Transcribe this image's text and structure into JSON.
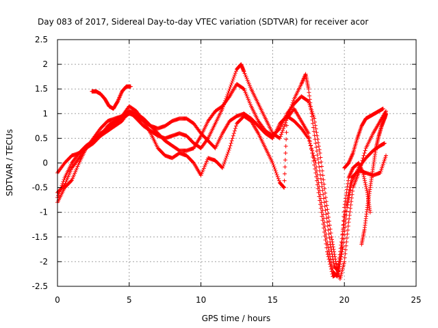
{
  "chart_data": {
    "type": "scatter",
    "title": "Day 083 of 2017, Sidereal Day-to-day VTEC variation (SDTVAR) for receiver acor",
    "xlabel": "GPS time / hours",
    "ylabel": "SDTVAR / TECUs",
    "xlim": [
      0,
      25
    ],
    "ylim": [
      -2.5,
      2.5
    ],
    "xticks": [
      "0",
      "5",
      "10",
      "15",
      "20",
      "25"
    ],
    "yticks": [
      "-2.5",
      "-2",
      "-1.5",
      "-1",
      "-0.5",
      "0",
      "0.5",
      "1",
      "1.5",
      "2",
      "2.5"
    ],
    "grid": true,
    "marker": "+",
    "color": "#ff0000",
    "series": [
      {
        "values": [
          [
            0,
            -0.6
          ],
          [
            0.5,
            -0.45
          ],
          [
            1,
            -0.1
          ],
          [
            1.5,
            0.1
          ],
          [
            2,
            0.3
          ],
          [
            2.5,
            0.5
          ],
          [
            3,
            0.7
          ],
          [
            3.5,
            0.85
          ],
          [
            4,
            0.9
          ],
          [
            4.5,
            0.95
          ],
          [
            5,
            1.05
          ],
          [
            5.5,
            0.9
          ],
          [
            6,
            0.75
          ],
          [
            6.5,
            0.65
          ],
          [
            7,
            0.55
          ],
          [
            7.5,
            0.5
          ],
          [
            8,
            0.55
          ],
          [
            8.5,
            0.6
          ],
          [
            9,
            0.55
          ],
          [
            9.5,
            0.4
          ],
          [
            10,
            0.3
          ],
          [
            10.5,
            0.5
          ],
          [
            11,
            0.8
          ],
          [
            11.5,
            1.1
          ],
          [
            12,
            1.5
          ],
          [
            12.5,
            1.9
          ],
          [
            12.8,
            2.0
          ],
          [
            13,
            1.85
          ],
          [
            13.5,
            1.5
          ],
          [
            14,
            1.2
          ],
          [
            14.5,
            0.9
          ],
          [
            15,
            0.6
          ],
          [
            15.5,
            0.5
          ],
          [
            16,
            0.9
          ],
          [
            16.5,
            1.3
          ],
          [
            17,
            1.6
          ],
          [
            17.3,
            1.8
          ],
          [
            17.5,
            1.5
          ],
          [
            17.8,
            0.8
          ],
          [
            18.2,
            0.0
          ],
          [
            18.6,
            -0.8
          ],
          [
            19,
            -1.6
          ],
          [
            19.3,
            -2.1
          ],
          [
            19.6,
            -2.2
          ],
          [
            19.9,
            -1.7
          ],
          [
            20.2,
            -0.9
          ],
          [
            20.5,
            -0.4
          ],
          [
            21,
            -0.1
          ],
          [
            21.5,
            0.1
          ],
          [
            22,
            0.25
          ],
          [
            22.5,
            0.35
          ],
          [
            22.8,
            0.4
          ]
        ]
      },
      {
        "values": [
          [
            0,
            -0.7
          ],
          [
            0.5,
            -0.3
          ],
          [
            1,
            0.0
          ],
          [
            1.5,
            0.2
          ],
          [
            2,
            0.35
          ],
          [
            2.5,
            0.45
          ],
          [
            3,
            0.55
          ],
          [
            3.5,
            0.65
          ],
          [
            4,
            0.75
          ],
          [
            4.5,
            0.85
          ],
          [
            5,
            1.05
          ],
          [
            5.5,
            1.0
          ],
          [
            6,
            0.9
          ],
          [
            6.5,
            0.75
          ],
          [
            7,
            0.6
          ],
          [
            7.5,
            0.45
          ],
          [
            8,
            0.35
          ],
          [
            8.5,
            0.25
          ],
          [
            9,
            0.25
          ],
          [
            9.5,
            0.3
          ],
          [
            10,
            0.55
          ],
          [
            10.5,
            0.85
          ],
          [
            11,
            1.05
          ],
          [
            11.5,
            1.15
          ],
          [
            12,
            1.35
          ],
          [
            12.5,
            1.6
          ],
          [
            13,
            1.5
          ],
          [
            13.5,
            1.15
          ],
          [
            14,
            0.85
          ],
          [
            14.5,
            0.65
          ],
          [
            15,
            0.55
          ],
          [
            15.5,
            0.7
          ],
          [
            16,
            1.0
          ],
          [
            16.5,
            1.2
          ],
          [
            17,
            1.35
          ],
          [
            17.5,
            1.25
          ],
          [
            17.9,
            0.9
          ],
          [
            18.3,
            0.2
          ],
          [
            18.7,
            -0.7
          ],
          [
            19.1,
            -1.5
          ],
          [
            19.4,
            -2.0
          ],
          [
            19.7,
            -2.35
          ],
          [
            20,
            -2.0
          ],
          [
            20.3,
            -1.2
          ],
          [
            20.6,
            -0.5
          ],
          [
            21,
            -0.2
          ],
          [
            21.5,
            0.3
          ],
          [
            22,
            0.6
          ],
          [
            22.5,
            0.85
          ],
          [
            22.9,
            1.05
          ]
        ]
      },
      {
        "values": [
          [
            0,
            -0.2
          ],
          [
            0.5,
            0.0
          ],
          [
            1,
            0.15
          ],
          [
            1.5,
            0.2
          ],
          [
            2,
            0.3
          ],
          [
            2.5,
            0.45
          ],
          [
            3,
            0.6
          ],
          [
            3.5,
            0.7
          ],
          [
            4,
            0.8
          ],
          [
            4.5,
            0.95
          ],
          [
            5,
            1.15
          ],
          [
            5.5,
            1.05
          ],
          [
            6,
            0.85
          ],
          [
            6.5,
            0.6
          ],
          [
            7,
            0.3
          ],
          [
            7.5,
            0.15
          ],
          [
            8,
            0.1
          ],
          [
            8.5,
            0.2
          ],
          [
            9,
            0.15
          ],
          [
            9.5,
            0.0
          ],
          [
            10,
            -0.25
          ],
          [
            10.5,
            0.1
          ],
          [
            11,
            0.05
          ],
          [
            11.5,
            -0.1
          ],
          [
            12,
            0.3
          ],
          [
            12.5,
            0.8
          ],
          [
            13,
            0.95
          ],
          [
            13.5,
            0.85
          ],
          [
            14,
            0.6
          ],
          [
            14.5,
            0.3
          ],
          [
            15,
            0.0
          ],
          [
            15.5,
            -0.4
          ],
          [
            15.8,
            -0.5
          ],
          [
            16,
            0.9
          ],
          [
            16.5,
            1.1
          ],
          [
            17,
            0.85
          ],
          [
            17.5,
            0.6
          ],
          [
            18,
            -0.2
          ],
          [
            18.4,
            -1.0
          ],
          [
            18.8,
            -1.8
          ],
          [
            19.2,
            -2.3
          ],
          [
            19.5,
            -2.25
          ],
          [
            19.8,
            -1.6
          ],
          [
            20.1,
            -0.9
          ],
          [
            20.5,
            -0.3
          ],
          [
            21,
            -0.15
          ],
          [
            21.5,
            -0.2
          ],
          [
            22,
            -0.25
          ],
          [
            22.5,
            -0.2
          ],
          [
            22.9,
            0.15
          ]
        ]
      },
      {
        "values": [
          [
            0,
            -0.8
          ],
          [
            0.5,
            -0.5
          ],
          [
            1,
            -0.35
          ],
          [
            1.5,
            0.0
          ],
          [
            2,
            0.3
          ],
          [
            2.5,
            0.4
          ],
          [
            3,
            0.55
          ],
          [
            3.5,
            0.75
          ],
          [
            4,
            0.85
          ],
          [
            4.5,
            0.9
          ],
          [
            5,
            1.0
          ],
          [
            5.5,
            0.95
          ],
          [
            6,
            0.85
          ],
          [
            6.5,
            0.75
          ],
          [
            7,
            0.7
          ],
          [
            7.5,
            0.75
          ],
          [
            8,
            0.85
          ],
          [
            8.5,
            0.9
          ],
          [
            9,
            0.9
          ],
          [
            9.5,
            0.8
          ],
          [
            10,
            0.6
          ],
          [
            10.5,
            0.45
          ],
          [
            11,
            0.3
          ],
          [
            11.5,
            0.6
          ],
          [
            12,
            0.85
          ],
          [
            12.5,
            0.95
          ],
          [
            13,
            1.0
          ],
          [
            13.5,
            0.9
          ],
          [
            14,
            0.75
          ],
          [
            14.5,
            0.6
          ],
          [
            15,
            0.5
          ],
          [
            15.5,
            0.8
          ],
          [
            16,
            0.95
          ],
          [
            16.5,
            0.85
          ],
          [
            17,
            0.7
          ],
          [
            17.5,
            0.5
          ],
          [
            18,
            0.0
          ],
          [
            18.4,
            -0.8
          ],
          [
            18.8,
            -1.6
          ],
          [
            19.2,
            -2.2
          ],
          [
            19.5,
            -2.3
          ],
          [
            19.8,
            -1.8
          ],
          [
            20,
            -0.9
          ],
          [
            20.3,
            -0.3
          ],
          [
            20.6,
            -0.1
          ],
          [
            21,
            0.0
          ],
          [
            21.3,
            -0.2
          ],
          [
            21.6,
            -0.6
          ],
          [
            21.8,
            -1.0
          ]
        ]
      },
      {
        "values": [
          [
            2.4,
            1.45
          ],
          [
            2.7,
            1.45
          ],
          [
            3,
            1.4
          ],
          [
            3.3,
            1.3
          ],
          [
            3.6,
            1.15
          ],
          [
            3.9,
            1.1
          ],
          [
            4.2,
            1.25
          ],
          [
            4.5,
            1.45
          ],
          [
            4.8,
            1.55
          ],
          [
            5.1,
            1.55
          ]
        ]
      },
      {
        "values": [
          [
            21.2,
            -1.65
          ],
          [
            21.4,
            -1.35
          ],
          [
            21.6,
            -0.9
          ],
          [
            21.8,
            -0.5
          ],
          [
            22,
            -0.1
          ],
          [
            22.2,
            0.3
          ],
          [
            22.4,
            0.55
          ],
          [
            22.6,
            0.75
          ],
          [
            22.8,
            0.9
          ],
          [
            22.9,
            1.0
          ]
        ]
      },
      {
        "values": [
          [
            20,
            -0.1
          ],
          [
            20.3,
            0.0
          ],
          [
            20.6,
            0.2
          ],
          [
            20.9,
            0.5
          ],
          [
            21.2,
            0.75
          ],
          [
            21.5,
            0.9
          ],
          [
            21.8,
            0.95
          ],
          [
            22.1,
            1.0
          ],
          [
            22.4,
            1.05
          ],
          [
            22.7,
            1.1
          ]
        ]
      }
    ]
  }
}
